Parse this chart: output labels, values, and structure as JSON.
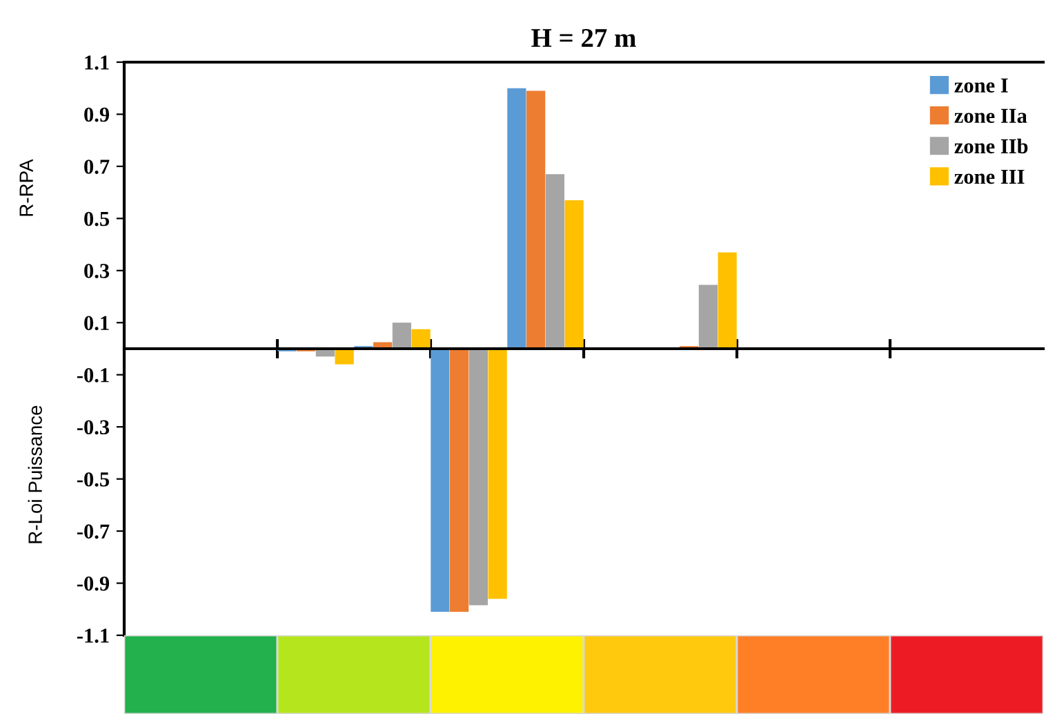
{
  "chart_data": {
    "type": "bar",
    "title": "H = 27 m",
    "ylabel": "R-RPA",
    "annotations": [
      "R-Loi Puissance"
    ],
    "categories": [
      null,
      null,
      null,
      null,
      null,
      null,
      null,
      null,
      null,
      null,
      null,
      null
    ],
    "series": [
      {
        "name": "zone I",
        "color": "#5b9bd5",
        "values": [
          null,
          null,
          -0.01,
          0.01,
          -1.01,
          1.0,
          null,
          null,
          null,
          null,
          null,
          null
        ]
      },
      {
        "name": "zone IIa",
        "color": "#ed7d31",
        "values": [
          null,
          null,
          -0.01,
          0.025,
          -1.01,
          0.99,
          null,
          0.01,
          null,
          null,
          null,
          null
        ]
      },
      {
        "name": "zone IIb",
        "color": "#a5a5a5",
        "values": [
          null,
          null,
          -0.03,
          0.1,
          -0.985,
          0.67,
          null,
          0.245,
          null,
          null,
          null,
          null
        ]
      },
      {
        "name": "zone III",
        "color": "#ffc000",
        "values": [
          null,
          null,
          -0.06,
          0.075,
          -0.96,
          0.57,
          null,
          0.37,
          null,
          null,
          null,
          null
        ]
      }
    ],
    "ylim": [
      -1.1,
      1.1
    ],
    "yticks": [
      1.1,
      0.9,
      0.7,
      0.5,
      0.3,
      0.1,
      -0.1,
      -0.3,
      -0.5,
      -0.7,
      -0.9,
      -1.1
    ],
    "grid": false,
    "legend": "top right"
  }
}
